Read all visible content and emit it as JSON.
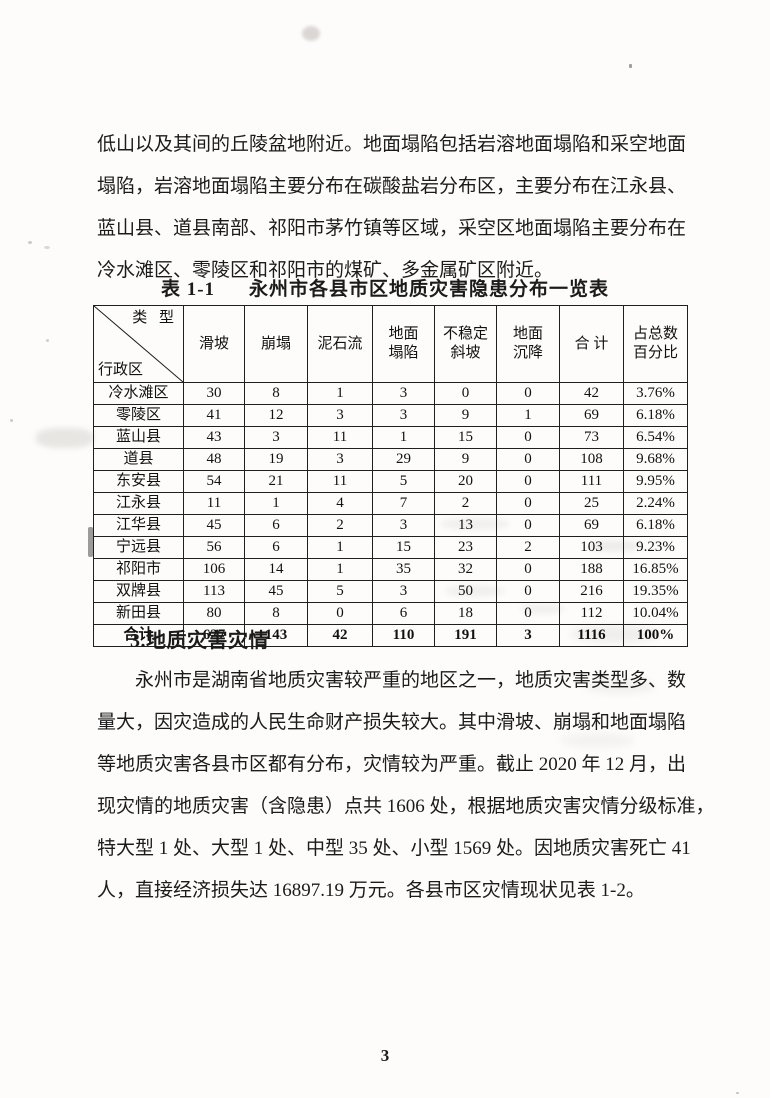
{
  "page": {
    "number": "3"
  },
  "intro_paragraph": {
    "lines": [
      "低山以及其间的丘陵盆地附近。地面塌陷包括岩溶地面塌陷和采空地面",
      "塌陷，岩溶地面塌陷主要分布在碳酸盐岩分布区，主要分布在江永县、",
      "蓝山县、道县南部、祁阳市茅竹镇等区域，采空区地面塌陷主要分布在",
      "冷水滩区、零陵区和祁阳市的煤矿、多金属矿区附近。"
    ]
  },
  "table": {
    "caption": {
      "label": "表 1-1",
      "title": "永州市各县市区地质灾害隐患分布一览表"
    },
    "corner": {
      "top": "类 型",
      "bottom": "行政区"
    },
    "columns": [
      "滑坡",
      "崩塌",
      "泥石流",
      "地面\n塌陷",
      "不稳定\n斜坡",
      "地面\n沉降",
      "合  计",
      "占总数\n百分比"
    ],
    "rows": [
      [
        "冷水滩区",
        "30",
        "8",
        "1",
        "3",
        "0",
        "0",
        "42",
        "3.76%"
      ],
      [
        "零陵区",
        "41",
        "12",
        "3",
        "3",
        "9",
        "1",
        "69",
        "6.18%"
      ],
      [
        "蓝山县",
        "43",
        "3",
        "11",
        "1",
        "15",
        "0",
        "73",
        "6.54%"
      ],
      [
        "道县",
        "48",
        "19",
        "3",
        "29",
        "9",
        "0",
        "108",
        "9.68%"
      ],
      [
        "东安县",
        "54",
        "21",
        "11",
        "5",
        "20",
        "0",
        "111",
        "9.95%"
      ],
      [
        "江永县",
        "11",
        "1",
        "4",
        "7",
        "2",
        "0",
        "25",
        "2.24%"
      ],
      [
        "江华县",
        "45",
        "6",
        "2",
        "3",
        "13",
        "0",
        "69",
        "6.18%"
      ],
      [
        "宁远县",
        "56",
        "6",
        "1",
        "15",
        "23",
        "2",
        "103",
        "9.23%"
      ],
      [
        "祁阳市",
        "106",
        "14",
        "1",
        "35",
        "32",
        "0",
        "188",
        "16.85%"
      ],
      [
        "双牌县",
        "113",
        "45",
        "5",
        "3",
        "50",
        "0",
        "216",
        "19.35%"
      ],
      [
        "新田县",
        "80",
        "8",
        "0",
        "6",
        "18",
        "0",
        "112",
        "10.04%"
      ]
    ],
    "total_row": [
      "合计",
      "627",
      "143",
      "42",
      "110",
      "191",
      "3",
      "1116",
      "100%"
    ]
  },
  "section": {
    "heading": "3.地质灾害灾情",
    "paragraph_lines": [
      "永州市是湖南省地质灾害较严重的地区之一，地质灾害类型多、数",
      "量大，因灾造成的人民生命财产损失较大。其中滑坡、崩塌和地面塌陷",
      "等地质灾害各县市区都有分布，灾情较为严重。截止 2020 年 12 月，出",
      "现灾情的地质灾害（含隐患）点共 1606 处，根据地质灾害灾情分级标准，",
      "特大型 1 处、大型 1 处、中型 35 处、小型 1569 处。因地质灾害死亡 41",
      "人，直接经济损失达 16897.19 万元。各县市区灾情现状见表 1-2。"
    ]
  }
}
